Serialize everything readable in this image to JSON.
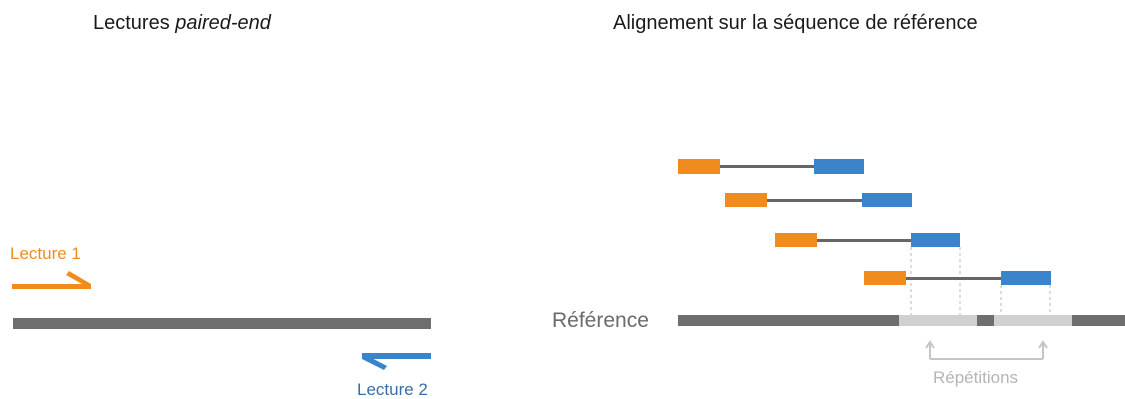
{
  "left_panel": {
    "title_plain": "Lectures ",
    "title_italic": "paired-end",
    "read1_label": "Lecture 1",
    "read2_label": "Lecture 2"
  },
  "right_panel": {
    "title": "Alignement sur la séquence de référence",
    "reference_label": "Référence",
    "repeats_label": "Répétitions"
  },
  "colors": {
    "read1": "#f08c1e",
    "read2": "#3a84cc",
    "connector": "#666666",
    "reference": "#6e6e6e",
    "repeat": "#d0d0d0",
    "guide": "#c4c4c4"
  }
}
